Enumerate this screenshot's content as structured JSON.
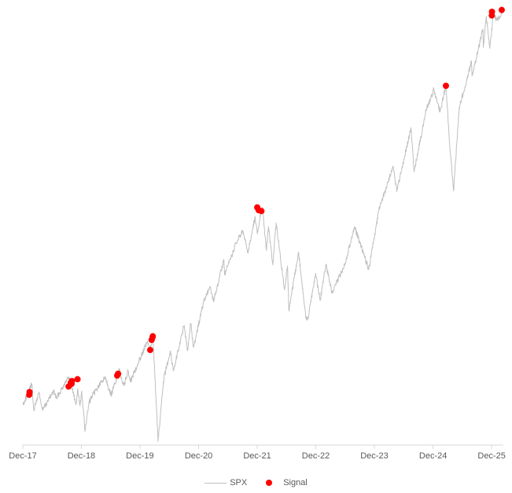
{
  "chart_data": {
    "type": "line",
    "title": "",
    "xlabel": "",
    "ylabel": "",
    "grid": false,
    "legend_placement": "bottom",
    "x_ticks": [
      "Dec-17",
      "Dec-18",
      "Dec-19",
      "Dec-20",
      "Dec-21",
      "Dec-22",
      "Dec-23",
      "Dec-24",
      "Dec-25"
    ],
    "y_axis_visible": false,
    "ylim": [
      2200,
      7000
    ],
    "series": [
      {
        "name": "SPX",
        "kind": "line",
        "color": "#bfbfbf",
        "points": [
          [
            "2017-12-01",
            2640
          ],
          [
            "2018-01-26",
            2870
          ],
          [
            "2018-02-08",
            2580
          ],
          [
            "2018-03-12",
            2780
          ],
          [
            "2018-04-02",
            2580
          ],
          [
            "2018-05-15",
            2710
          ],
          [
            "2018-06-12",
            2790
          ],
          [
            "2018-06-29",
            2710
          ],
          [
            "2018-08-29",
            2910
          ],
          [
            "2018-09-20",
            2930
          ],
          [
            "2018-10-29",
            2640
          ],
          [
            "2018-11-07",
            2810
          ],
          [
            "2018-11-23",
            2630
          ],
          [
            "2018-12-03",
            2790
          ],
          [
            "2018-12-24",
            2350
          ],
          [
            "2019-01-18",
            2670
          ],
          [
            "2019-03-01",
            2800
          ],
          [
            "2019-04-30",
            2950
          ],
          [
            "2019-06-03",
            2740
          ],
          [
            "2019-07-26",
            3020
          ],
          [
            "2019-08-23",
            2850
          ],
          [
            "2019-09-18",
            3010
          ],
          [
            "2019-10-02",
            2890
          ],
          [
            "2019-11-29",
            3140
          ],
          [
            "2020-01-17",
            3330
          ],
          [
            "2020-01-31",
            3230
          ],
          [
            "2020-02-19",
            3390
          ],
          [
            "2020-03-09",
            2750
          ],
          [
            "2020-03-23",
            2240
          ],
          [
            "2020-04-29",
            2940
          ],
          [
            "2020-06-08",
            3230
          ],
          [
            "2020-06-26",
            3010
          ],
          [
            "2020-08-31",
            3500
          ],
          [
            "2020-09-23",
            3240
          ],
          [
            "2020-10-12",
            3530
          ],
          [
            "2020-10-30",
            3270
          ],
          [
            "2020-12-31",
            3760
          ],
          [
            "2021-02-12",
            3930
          ],
          [
            "2021-03-04",
            3770
          ],
          [
            "2021-05-07",
            4230
          ],
          [
            "2021-05-12",
            4060
          ],
          [
            "2021-07-23",
            4410
          ],
          [
            "2021-09-02",
            4540
          ],
          [
            "2021-10-04",
            4300
          ],
          [
            "2021-11-18",
            4700
          ],
          [
            "2021-12-01",
            4510
          ],
          [
            "2021-12-27",
            4790
          ],
          [
            "2022-01-03",
            4800
          ],
          [
            "2022-01-27",
            4330
          ],
          [
            "2022-02-09",
            4590
          ],
          [
            "2022-03-08",
            4170
          ],
          [
            "2022-03-29",
            4630
          ],
          [
            "2022-05-20",
            3900
          ],
          [
            "2022-06-08",
            4160
          ],
          [
            "2022-06-16",
            3670
          ],
          [
            "2022-08-16",
            4310
          ],
          [
            "2022-09-30",
            3590
          ],
          [
            "2022-10-12",
            3580
          ],
          [
            "2022-11-30",
            4080
          ],
          [
            "2022-12-28",
            3780
          ],
          [
            "2023-02-02",
            4180
          ],
          [
            "2023-03-13",
            3860
          ],
          [
            "2023-05-31",
            4180
          ],
          [
            "2023-07-31",
            4590
          ],
          [
            "2023-10-27",
            4120
          ],
          [
            "2023-12-29",
            4770
          ],
          [
            "2024-03-28",
            5250
          ],
          [
            "2024-04-19",
            4970
          ],
          [
            "2024-07-16",
            5670
          ],
          [
            "2024-08-05",
            5190
          ],
          [
            "2024-10-18",
            5860
          ],
          [
            "2024-12-06",
            6090
          ],
          [
            "2025-01-13",
            5840
          ],
          [
            "2025-02-19",
            6140
          ],
          [
            "2025-03-13",
            5520
          ],
          [
            "2025-04-08",
            4980
          ],
          [
            "2025-05-13",
            5890
          ],
          [
            "2025-07-28",
            6390
          ],
          [
            "2025-08-01",
            6240
          ],
          [
            "2025-10-08",
            6750
          ],
          [
            "2025-10-10",
            6550
          ],
          [
            "2025-10-28",
            6890
          ],
          [
            "2025-11-20",
            6540
          ],
          [
            "2025-12-11",
            6900
          ],
          [
            "2026-01-02",
            6860
          ],
          [
            "2026-01-21",
            6870
          ],
          [
            "2026-02-09",
            6960
          ]
        ]
      },
      {
        "name": "Signal",
        "kind": "scatter",
        "color": "#ff0000",
        "points": [
          [
            "2018-01-10",
            2750
          ],
          [
            "2018-01-12",
            2780
          ],
          [
            "2018-09-12",
            2840
          ],
          [
            "2018-09-26",
            2880
          ],
          [
            "2018-10-03",
            2900
          ],
          [
            "2018-10-01",
            2870
          ],
          [
            "2018-11-07",
            2920
          ],
          [
            "2019-07-12",
            2960
          ],
          [
            "2019-07-18",
            2980
          ],
          [
            "2020-02-03",
            3240
          ],
          [
            "2020-02-12",
            3350
          ],
          [
            "2020-02-19",
            3390
          ],
          [
            "2020-02-18",
            3380
          ],
          [
            "2021-12-01",
            4800
          ],
          [
            "2021-12-10",
            4770
          ],
          [
            "2021-12-27",
            4760
          ],
          [
            "2025-02-19",
            6130
          ],
          [
            "2025-12-02",
            6900
          ],
          [
            "2025-12-03",
            6940
          ],
          [
            "2026-02-02",
            6960
          ]
        ]
      }
    ]
  }
}
